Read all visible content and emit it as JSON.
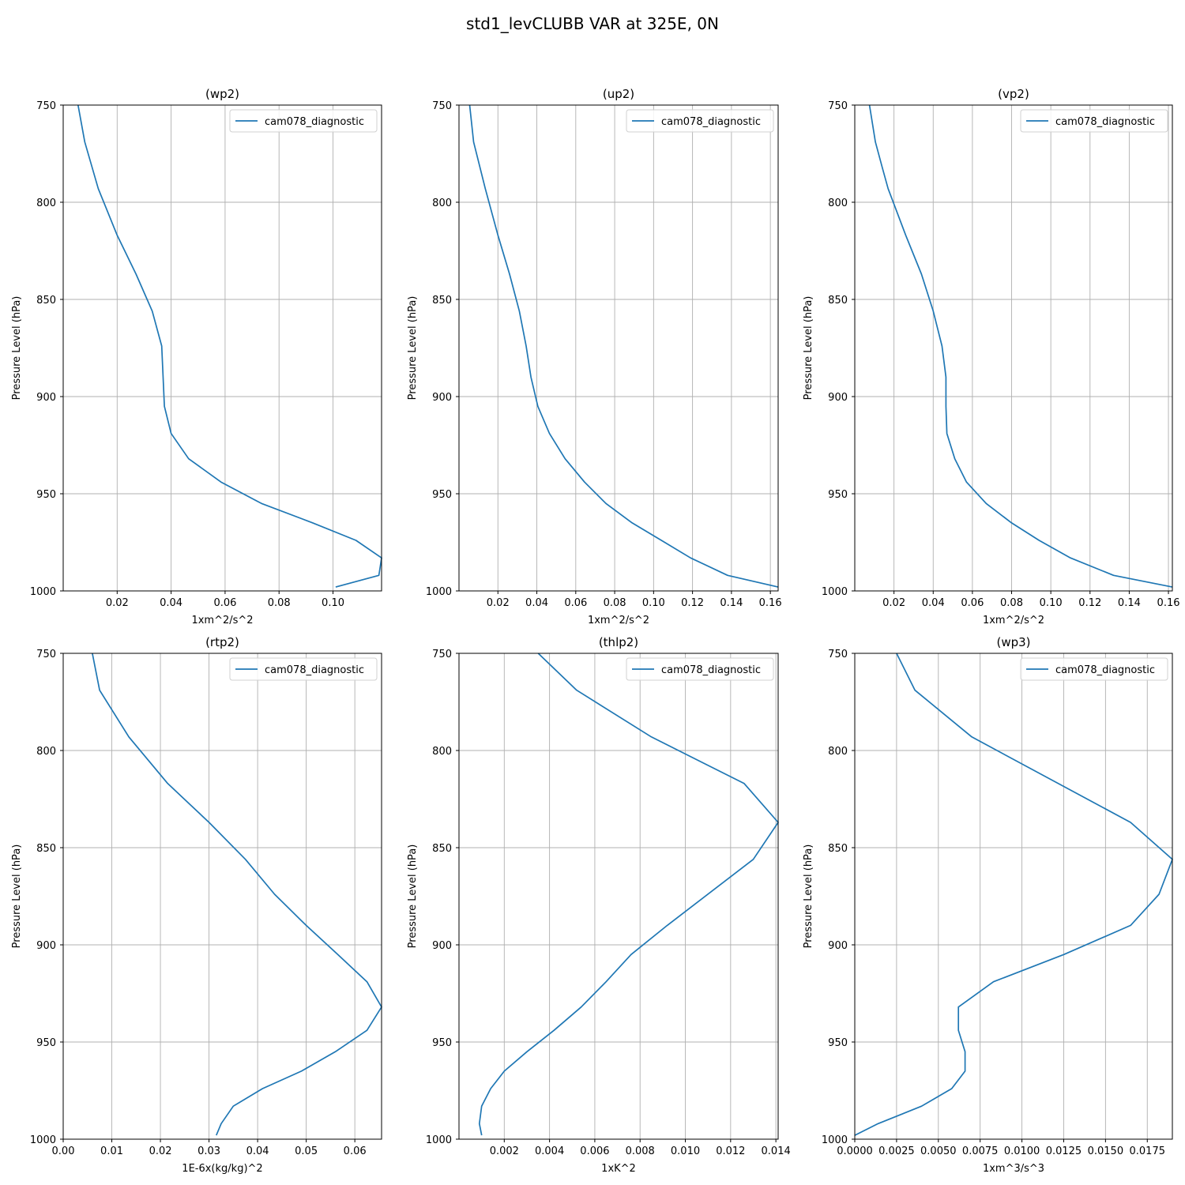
{
  "figure": {
    "title": "std1_levCLUBB VAR at 325E, 0N"
  },
  "chart_data": [
    {
      "type": "line",
      "title": "(wp2)",
      "xlabel": "1xm^2/s^2",
      "ylabel": "Pressure Level (hPa)",
      "xlim": [
        0.0,
        0.118
      ],
      "ylim": [
        1000,
        750
      ],
      "xticks": [
        0.02,
        0.04,
        0.06,
        0.08,
        0.1
      ],
      "xtick_labels": [
        "0.02",
        "0.04",
        "0.06",
        "0.08",
        "0.10"
      ],
      "yticks": [
        750,
        800,
        850,
        900,
        950,
        1000
      ],
      "yticks_labels": [
        "750",
        "800",
        "850",
        "900",
        "950",
        "1000"
      ],
      "grid": true,
      "legend": "upper right",
      "series": [
        {
          "name": "cam078_diagnostic",
          "x": [
            0.0055,
            0.008,
            0.013,
            0.02,
            0.027,
            0.033,
            0.0365,
            0.0375,
            0.04,
            0.0465,
            0.0585,
            0.0735,
            0.0925,
            0.1085,
            0.118,
            0.117,
            0.101
          ],
          "y": [
            750,
            769,
            793,
            817,
            837,
            856,
            874,
            905,
            919,
            932,
            944,
            955,
            965,
            974,
            983,
            992,
            998
          ]
        }
      ]
    },
    {
      "type": "line",
      "title": "(up2)",
      "xlabel": "1xm^2/s^2",
      "ylabel": "Pressure Level (hPa)",
      "xlim": [
        0.0,
        0.164
      ],
      "ylim": [
        1000,
        750
      ],
      "xticks": [
        0.02,
        0.04,
        0.06,
        0.08,
        0.1,
        0.12,
        0.14,
        0.16
      ],
      "xtick_labels": [
        "0.02",
        "0.04",
        "0.06",
        "0.08",
        "0.10",
        "0.12",
        "0.14",
        "0.16"
      ],
      "yticks": [
        750,
        800,
        850,
        900,
        950,
        1000
      ],
      "yticks_labels": [
        "750",
        "800",
        "850",
        "900",
        "950",
        "1000"
      ],
      "grid": true,
      "legend": "upper right",
      "series": [
        {
          "name": "cam078_diagnostic",
          "x": [
            0.0055,
            0.0075,
            0.0135,
            0.02,
            0.026,
            0.031,
            0.0345,
            0.037,
            0.0405,
            0.0465,
            0.0545,
            0.0645,
            0.0755,
            0.089,
            0.104,
            0.119,
            0.138,
            0.164
          ],
          "y": [
            750,
            769,
            793,
            817,
            837,
            856,
            874,
            890,
            905,
            919,
            932,
            944,
            955,
            965,
            974,
            983,
            992,
            998
          ]
        }
      ]
    },
    {
      "type": "line",
      "title": "(vp2)",
      "xlabel": "1xm^2/s^2",
      "ylabel": "Pressure Level (hPa)",
      "xlim": [
        0.0,
        0.162
      ],
      "ylim": [
        1000,
        750
      ],
      "xticks": [
        0.02,
        0.04,
        0.06,
        0.08,
        0.1,
        0.12,
        0.14,
        0.16
      ],
      "xtick_labels": [
        "0.02",
        "0.04",
        "0.06",
        "0.08",
        "0.10",
        "0.12",
        "0.14",
        "0.16"
      ],
      "yticks": [
        750,
        800,
        850,
        900,
        950,
        1000
      ],
      "yticks_labels": [
        "750",
        "800",
        "850",
        "900",
        "950",
        "1000"
      ],
      "grid": true,
      "legend": "upper right",
      "series": [
        {
          "name": "cam078_diagnostic",
          "x": [
            0.0075,
            0.0105,
            0.014,
            0.017,
            0.026,
            0.034,
            0.04,
            0.0445,
            0.0465,
            0.0465,
            0.047,
            0.051,
            0.057,
            0.067,
            0.08,
            0.094,
            0.11,
            0.132,
            0.162
          ],
          "y": [
            750,
            769,
            782,
            793,
            817,
            837,
            856,
            874,
            890,
            905,
            919,
            932,
            944,
            955,
            965,
            974,
            983,
            992,
            998
          ]
        }
      ]
    },
    {
      "type": "line",
      "title": "(rtp2)",
      "xlabel": "1E-6x(kg/kg)^2",
      "ylabel": "Pressure Level (hPa)",
      "xlim": [
        0.0,
        0.0655
      ],
      "ylim": [
        1000,
        750
      ],
      "xticks": [
        0.0,
        0.01,
        0.02,
        0.03,
        0.04,
        0.05,
        0.06
      ],
      "xtick_labels": [
        "0.00",
        "0.01",
        "0.02",
        "0.03",
        "0.04",
        "0.05",
        "0.06"
      ],
      "yticks": [
        750,
        800,
        850,
        900,
        950,
        1000
      ],
      "yticks_labels": [
        "750",
        "800",
        "850",
        "900",
        "950",
        "1000"
      ],
      "grid": true,
      "legend": "upper right",
      "series": [
        {
          "name": "cam078_diagnostic",
          "x": [
            0.006,
            0.0075,
            0.0135,
            0.0215,
            0.03,
            0.0375,
            0.0435,
            0.05,
            0.0565,
            0.0625,
            0.0655,
            0.0625,
            0.056,
            0.049,
            0.041,
            0.035,
            0.0325,
            0.0315
          ],
          "y": [
            750,
            769,
            793,
            817,
            837,
            856,
            874,
            890,
            905,
            919,
            932,
            944,
            955,
            965,
            974,
            983,
            992,
            998
          ]
        }
      ]
    },
    {
      "type": "line",
      "title": "(thlp2)",
      "xlabel": "1xK^2",
      "ylabel": "Pressure Level (hPa)",
      "xlim": [
        0.0,
        0.0141
      ],
      "ylim": [
        1000,
        750
      ],
      "xticks": [
        0.002,
        0.004,
        0.006,
        0.008,
        0.01,
        0.012,
        0.014
      ],
      "xtick_labels": [
        "0.002",
        "0.004",
        "0.006",
        "0.008",
        "0.010",
        "0.012",
        "0.014"
      ],
      "yticks": [
        750,
        800,
        850,
        900,
        950,
        1000
      ],
      "yticks_labels": [
        "750",
        "800",
        "850",
        "900",
        "950",
        "1000"
      ],
      "grid": true,
      "legend": "upper right",
      "series": [
        {
          "name": "cam078_diagnostic",
          "x": [
            0.0035,
            0.0052,
            0.0085,
            0.0126,
            0.0141,
            0.013,
            0.0092,
            0.0076,
            0.0065,
            0.0054,
            0.0042,
            0.003,
            0.002,
            0.0014,
            0.001,
            0.0009,
            0.001
          ],
          "y": [
            750,
            769,
            793,
            817,
            837,
            856,
            890,
            905,
            919,
            932,
            944,
            955,
            965,
            974,
            983,
            992,
            998
          ]
        }
      ]
    },
    {
      "type": "line",
      "title": "(wp3)",
      "xlabel": "1xm^3/s^3",
      "ylabel": "Pressure Level (hPa)",
      "xlim": [
        0.0,
        0.019
      ],
      "ylim": [
        1000,
        750
      ],
      "xticks": [
        0.0,
        0.0025,
        0.005,
        0.0075,
        0.01,
        0.0125,
        0.015,
        0.0175
      ],
      "xtick_labels": [
        "0.0000",
        "0.0025",
        "0.0050",
        "0.0075",
        "0.0100",
        "0.0125",
        "0.0150",
        "0.0175"
      ],
      "yticks": [
        750,
        800,
        850,
        900,
        950,
        1000
      ],
      "yticks_labels": [
        "750",
        "800",
        "850",
        "900",
        "950",
        "1000"
      ],
      "grid": true,
      "legend": "upper right",
      "series": [
        {
          "name": "cam078_diagnostic",
          "x": [
            0.0025,
            0.0036,
            0.007,
            0.0165,
            0.019,
            0.0182,
            0.0165,
            0.0125,
            0.0083,
            0.0062,
            0.0062,
            0.0066,
            0.0066,
            0.0058,
            0.004,
            0.0014,
            0.0
          ],
          "y": [
            750,
            769,
            793,
            837,
            856,
            874,
            890,
            905,
            919,
            932,
            944,
            955,
            965,
            974,
            983,
            992,
            998
          ]
        }
      ]
    }
  ]
}
